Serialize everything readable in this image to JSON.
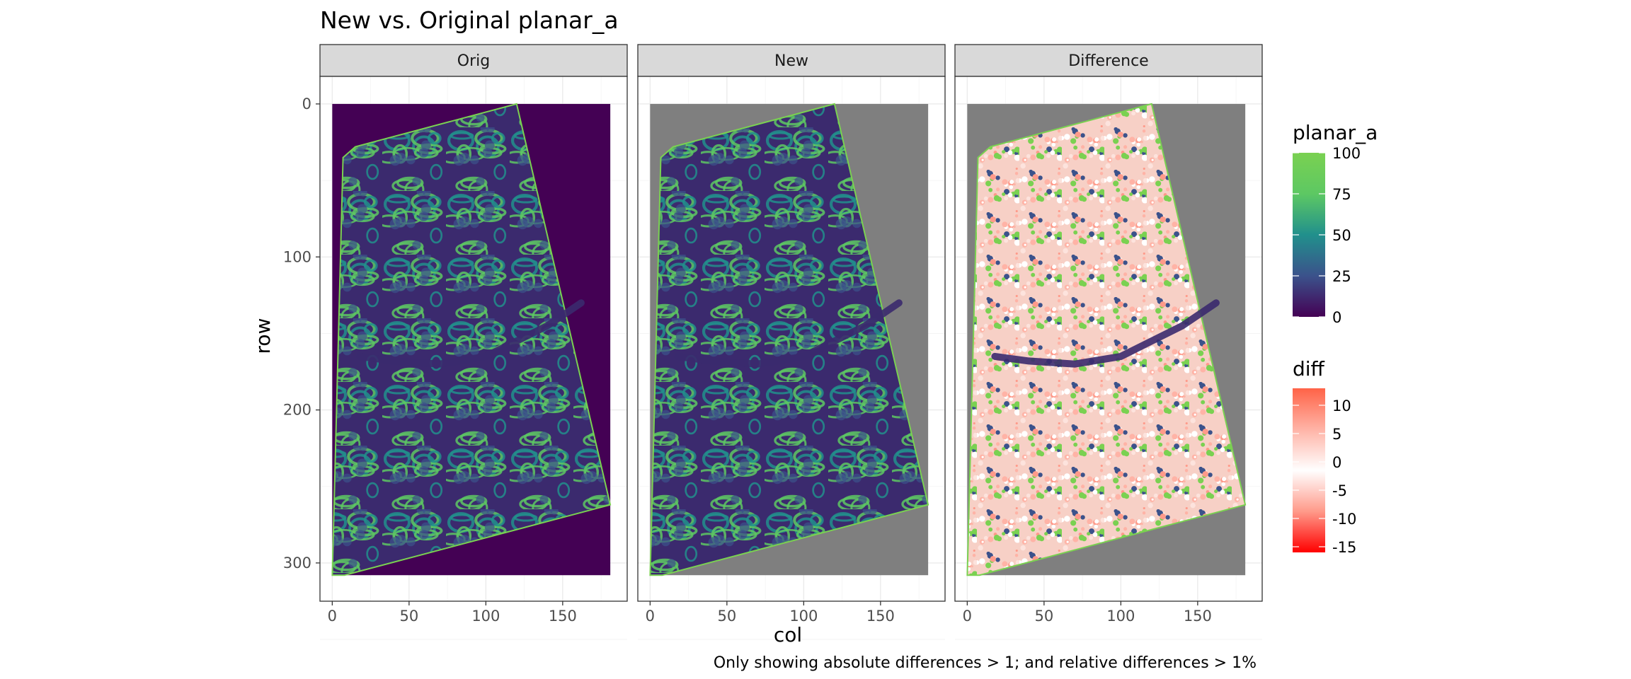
{
  "chart_data": {
    "type": "heatmap",
    "title": "New vs. Original planar_a",
    "xlabel": "col",
    "ylabel": "row",
    "caption": "Only showing absolute differences > 1; and relative differences > 1%",
    "xlim": [
      -8,
      192
    ],
    "ylim": [
      325,
      -18
    ],
    "x_ticks": [
      0,
      50,
      100,
      150
    ],
    "y_ticks": [
      0,
      100,
      200,
      300
    ],
    "grid": true,
    "facets": [
      {
        "label": "Orig",
        "background": "#440154",
        "fill_scale": "planar_a"
      },
      {
        "label": "New",
        "background": "#7f7f7f",
        "fill_scale": "planar_a"
      },
      {
        "label": "Difference",
        "background": "#7f7f7f",
        "fill_scale": "diff"
      }
    ],
    "image_extent": {
      "col": [
        0,
        181
      ],
      "row": [
        0,
        308
      ]
    },
    "field_outline": [
      [
        0,
        308
      ],
      [
        7,
        35
      ],
      [
        15,
        28
      ],
      [
        120,
        0
      ],
      [
        181,
        262
      ],
      [
        8,
        308
      ]
    ],
    "river_curve": [
      [
        18,
        165
      ],
      [
        40,
        168
      ],
      [
        70,
        170
      ],
      [
        100,
        165
      ],
      [
        120,
        155
      ],
      [
        140,
        145
      ],
      [
        162,
        130
      ]
    ],
    "legends": [
      {
        "title": "planar_a",
        "ticks": [
          100,
          75,
          50,
          25,
          0
        ],
        "range": [
          0,
          100
        ],
        "colors": [
          "#440154",
          "#3b528b",
          "#21908c",
          "#5dc863",
          "#7ad151"
        ]
      },
      {
        "title": "diff",
        "ticks": [
          10,
          5,
          0,
          -5,
          -10,
          -15
        ],
        "range": [
          -16,
          13
        ],
        "colors": [
          "#ff0000",
          "#ff9a8a",
          "#ffffff",
          "#ffb3a6",
          "#ff6347"
        ]
      }
    ]
  }
}
